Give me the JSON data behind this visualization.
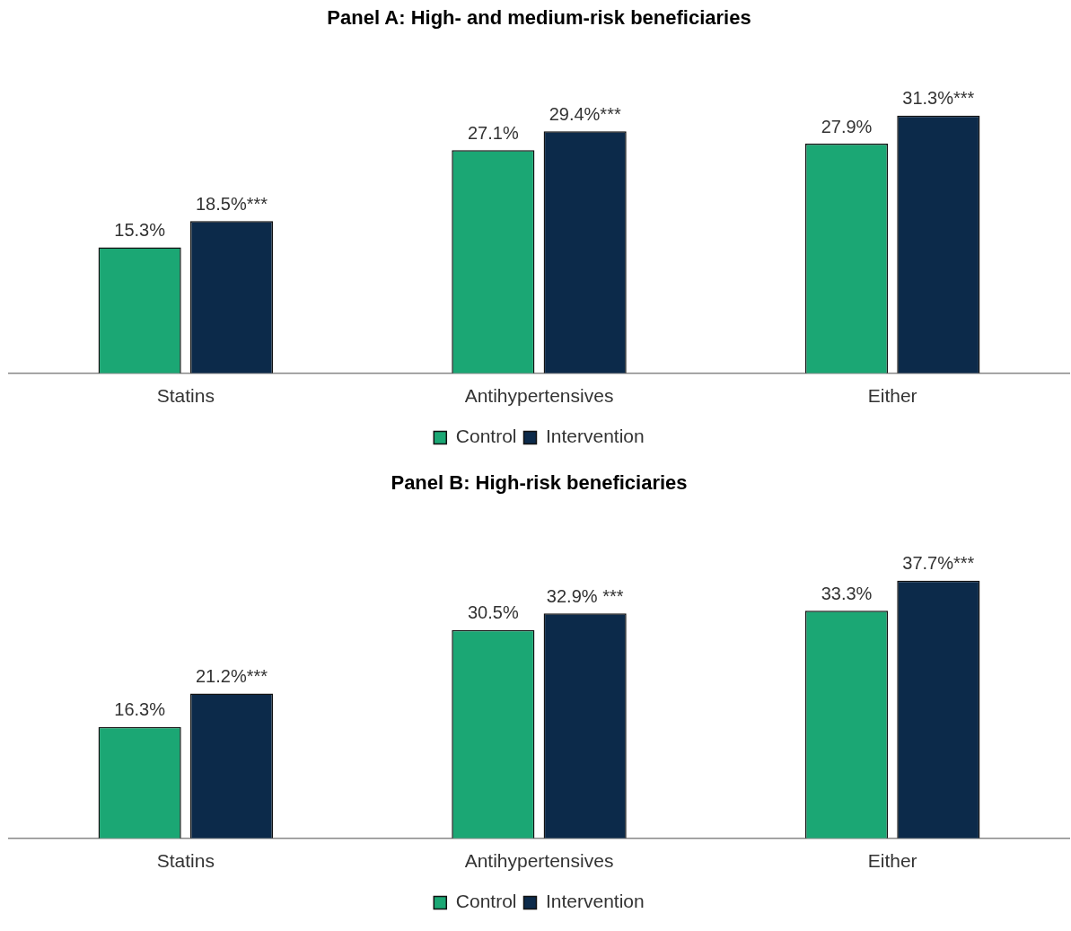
{
  "chart_data": [
    {
      "type": "bar",
      "title": "Panel A: High- and medium-risk beneficiaries",
      "categories": [
        "Statins",
        "Antihypertensives",
        "Either"
      ],
      "series": [
        {
          "name": "Control",
          "color": "#1ba774",
          "values": [
            15.3,
            27.1,
            27.9
          ],
          "value_labels": [
            "15.3%",
            "27.1%",
            "27.9%"
          ]
        },
        {
          "name": "Intervention",
          "color": "#0c2a4a",
          "values": [
            18.5,
            29.4,
            31.3
          ],
          "value_labels": [
            "18.5%***",
            "29.4%***",
            "31.3%***"
          ]
        }
      ],
      "legend": "bottom",
      "grid": false,
      "tick_labels": "x"
    },
    {
      "type": "bar",
      "title": "Panel B: High-risk beneficiaries",
      "categories": [
        "Statins",
        "Antihypertensives",
        "Either"
      ],
      "series": [
        {
          "name": "Control",
          "color": "#1ba774",
          "values": [
            16.3,
            30.5,
            33.3
          ],
          "value_labels": [
            "16.3%",
            "30.5%",
            "33.3%"
          ]
        },
        {
          "name": "Intervention",
          "color": "#0c2a4a",
          "values": [
            21.2,
            32.9,
            37.7
          ],
          "value_labels": [
            "21.2%***",
            "32.9% ***",
            "37.7%***"
          ]
        }
      ],
      "legend": "bottom",
      "grid": false,
      "tick_labels": "x"
    }
  ]
}
